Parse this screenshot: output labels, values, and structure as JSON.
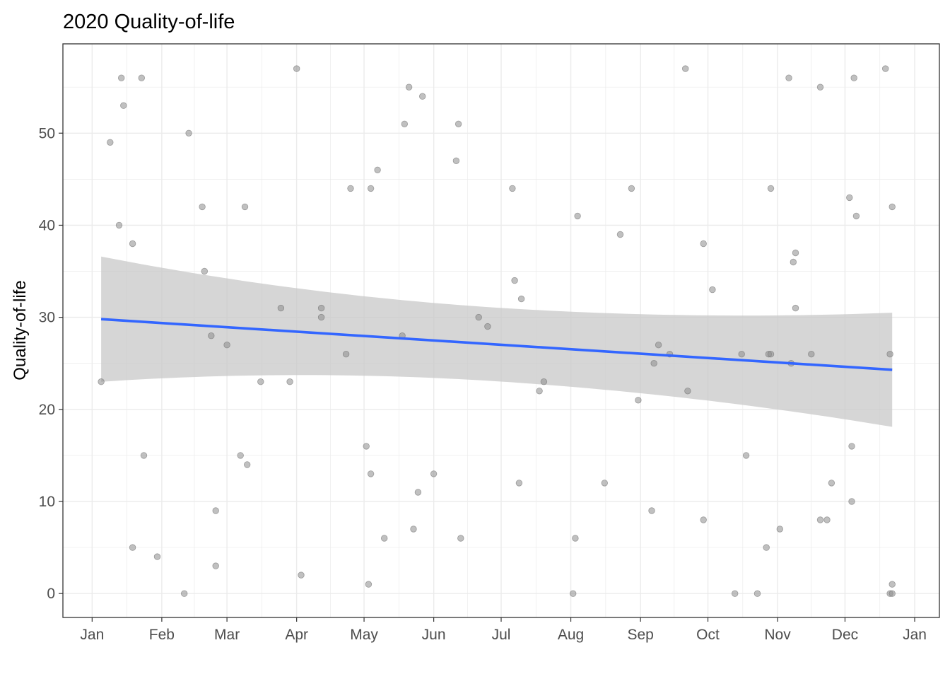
{
  "chart_data": {
    "type": "scatter",
    "title": "2020 Quality-of-life",
    "xlabel": "",
    "ylabel": "Quality-of-life",
    "x_ticks": [
      "Jan",
      "Feb",
      "Mar",
      "Apr",
      "May",
      "Jun",
      "Jul",
      "Aug",
      "Sep",
      "Oct",
      "Nov",
      "Dec",
      "Jan"
    ],
    "x_tick_dates": [
      "2020-01-01",
      "2020-02-01",
      "2020-03-01",
      "2020-04-01",
      "2020-05-01",
      "2020-06-01",
      "2020-07-01",
      "2020-08-01",
      "2020-09-01",
      "2020-10-01",
      "2020-11-01",
      "2020-12-01",
      "2021-01-01"
    ],
    "y_ticks": [
      0,
      10,
      20,
      30,
      40,
      50
    ],
    "xlim": [
      "2019-12-19",
      "2021-01-12"
    ],
    "ylim": [
      -2.6,
      59.7
    ],
    "grid": true,
    "points": [
      {
        "x": "2020-01-05",
        "y": 23
      },
      {
        "x": "2020-01-09",
        "y": 49
      },
      {
        "x": "2020-01-13",
        "y": 40
      },
      {
        "x": "2020-01-14",
        "y": 56
      },
      {
        "x": "2020-01-15",
        "y": 53
      },
      {
        "x": "2020-01-19",
        "y": 38
      },
      {
        "x": "2020-01-19",
        "y": 5
      },
      {
        "x": "2020-01-23",
        "y": 56
      },
      {
        "x": "2020-01-24",
        "y": 15
      },
      {
        "x": "2020-01-30",
        "y": 4
      },
      {
        "x": "2020-02-11",
        "y": 0
      },
      {
        "x": "2020-02-13",
        "y": 50
      },
      {
        "x": "2020-02-19",
        "y": 42
      },
      {
        "x": "2020-02-20",
        "y": 35
      },
      {
        "x": "2020-02-23",
        "y": 28
      },
      {
        "x": "2020-02-25",
        "y": 9
      },
      {
        "x": "2020-02-25",
        "y": 3
      },
      {
        "x": "2020-03-01",
        "y": 27
      },
      {
        "x": "2020-03-07",
        "y": 15
      },
      {
        "x": "2020-03-09",
        "y": 42
      },
      {
        "x": "2020-03-10",
        "y": 14
      },
      {
        "x": "2020-03-16",
        "y": 23
      },
      {
        "x": "2020-03-25",
        "y": 31
      },
      {
        "x": "2020-03-29",
        "y": 23
      },
      {
        "x": "2020-04-01",
        "y": 57
      },
      {
        "x": "2020-04-03",
        "y": 2
      },
      {
        "x": "2020-04-12",
        "y": 31
      },
      {
        "x": "2020-04-12",
        "y": 30
      },
      {
        "x": "2020-04-23",
        "y": 26
      },
      {
        "x": "2020-04-25",
        "y": 44
      },
      {
        "x": "2020-05-02",
        "y": 16
      },
      {
        "x": "2020-05-03",
        "y": 1
      },
      {
        "x": "2020-05-04",
        "y": 44
      },
      {
        "x": "2020-05-04",
        "y": 13
      },
      {
        "x": "2020-05-07",
        "y": 46
      },
      {
        "x": "2020-05-10",
        "y": 6
      },
      {
        "x": "2020-05-18",
        "y": 28
      },
      {
        "x": "2020-05-19",
        "y": 51
      },
      {
        "x": "2020-05-21",
        "y": 55
      },
      {
        "x": "2020-05-23",
        "y": 7
      },
      {
        "x": "2020-05-25",
        "y": 11
      },
      {
        "x": "2020-05-27",
        "y": 54
      },
      {
        "x": "2020-06-01",
        "y": 13
      },
      {
        "x": "2020-06-11",
        "y": 47
      },
      {
        "x": "2020-06-12",
        "y": 51
      },
      {
        "x": "2020-06-13",
        "y": 6
      },
      {
        "x": "2020-06-21",
        "y": 30
      },
      {
        "x": "2020-06-25",
        "y": 29
      },
      {
        "x": "2020-07-06",
        "y": 44
      },
      {
        "x": "2020-07-07",
        "y": 34
      },
      {
        "x": "2020-07-09",
        "y": 12
      },
      {
        "x": "2020-07-10",
        "y": 32
      },
      {
        "x": "2020-07-18",
        "y": 22
      },
      {
        "x": "2020-07-20",
        "y": 23
      },
      {
        "x": "2020-08-02",
        "y": 0
      },
      {
        "x": "2020-08-03",
        "y": 6
      },
      {
        "x": "2020-08-04",
        "y": 41
      },
      {
        "x": "2020-08-16",
        "y": 12
      },
      {
        "x": "2020-08-23",
        "y": 39
      },
      {
        "x": "2020-08-28",
        "y": 44
      },
      {
        "x": "2020-08-31",
        "y": 21
      },
      {
        "x": "2020-09-06",
        "y": 9
      },
      {
        "x": "2020-09-07",
        "y": 25
      },
      {
        "x": "2020-09-09",
        "y": 27
      },
      {
        "x": "2020-09-14",
        "y": 26
      },
      {
        "x": "2020-09-21",
        "y": 57
      },
      {
        "x": "2020-09-22",
        "y": 22
      },
      {
        "x": "2020-09-29",
        "y": 38
      },
      {
        "x": "2020-09-29",
        "y": 8
      },
      {
        "x": "2020-10-03",
        "y": 33
      },
      {
        "x": "2020-10-13",
        "y": 0
      },
      {
        "x": "2020-10-16",
        "y": 26
      },
      {
        "x": "2020-10-18",
        "y": 15
      },
      {
        "x": "2020-10-23",
        "y": 0
      },
      {
        "x": "2020-10-27",
        "y": 5
      },
      {
        "x": "2020-10-28",
        "y": 26
      },
      {
        "x": "2020-10-29",
        "y": 44
      },
      {
        "x": "2020-10-29",
        "y": 26
      },
      {
        "x": "2020-11-02",
        "y": 7
      },
      {
        "x": "2020-11-06",
        "y": 56
      },
      {
        "x": "2020-11-07",
        "y": 25
      },
      {
        "x": "2020-11-08",
        "y": 36
      },
      {
        "x": "2020-11-09",
        "y": 37
      },
      {
        "x": "2020-11-09",
        "y": 31
      },
      {
        "x": "2020-11-16",
        "y": 26
      },
      {
        "x": "2020-11-20",
        "y": 55
      },
      {
        "x": "2020-11-20",
        "y": 8
      },
      {
        "x": "2020-11-23",
        "y": 8
      },
      {
        "x": "2020-11-25",
        "y": 12
      },
      {
        "x": "2020-12-03",
        "y": 43
      },
      {
        "x": "2020-12-04",
        "y": 16
      },
      {
        "x": "2020-12-04",
        "y": 10
      },
      {
        "x": "2020-12-05",
        "y": 56
      },
      {
        "x": "2020-12-06",
        "y": 41
      },
      {
        "x": "2020-12-19",
        "y": 57
      },
      {
        "x": "2020-12-21",
        "y": 26
      },
      {
        "x": "2020-12-21",
        "y": 0
      },
      {
        "x": "2020-12-22",
        "y": 1
      },
      {
        "x": "2020-12-22",
        "y": 42
      },
      {
        "x": "2020-12-22",
        "y": 0
      }
    ],
    "trend": {
      "method": "linear",
      "x_start": "2020-01-05",
      "x_end": "2020-12-22",
      "y_start": 29.8,
      "y_end": 24.3,
      "ci_upper_start": 36.6,
      "ci_upper_end": 30.5,
      "ci_lower_start": 23.0,
      "ci_lower_end": 18.1
    },
    "colors": {
      "points": "#8c8c8c",
      "trend_line": "#3366ff",
      "ci_band": "#c8c8c8",
      "grid": "#ebebeb",
      "panel_border": "#333333"
    }
  }
}
